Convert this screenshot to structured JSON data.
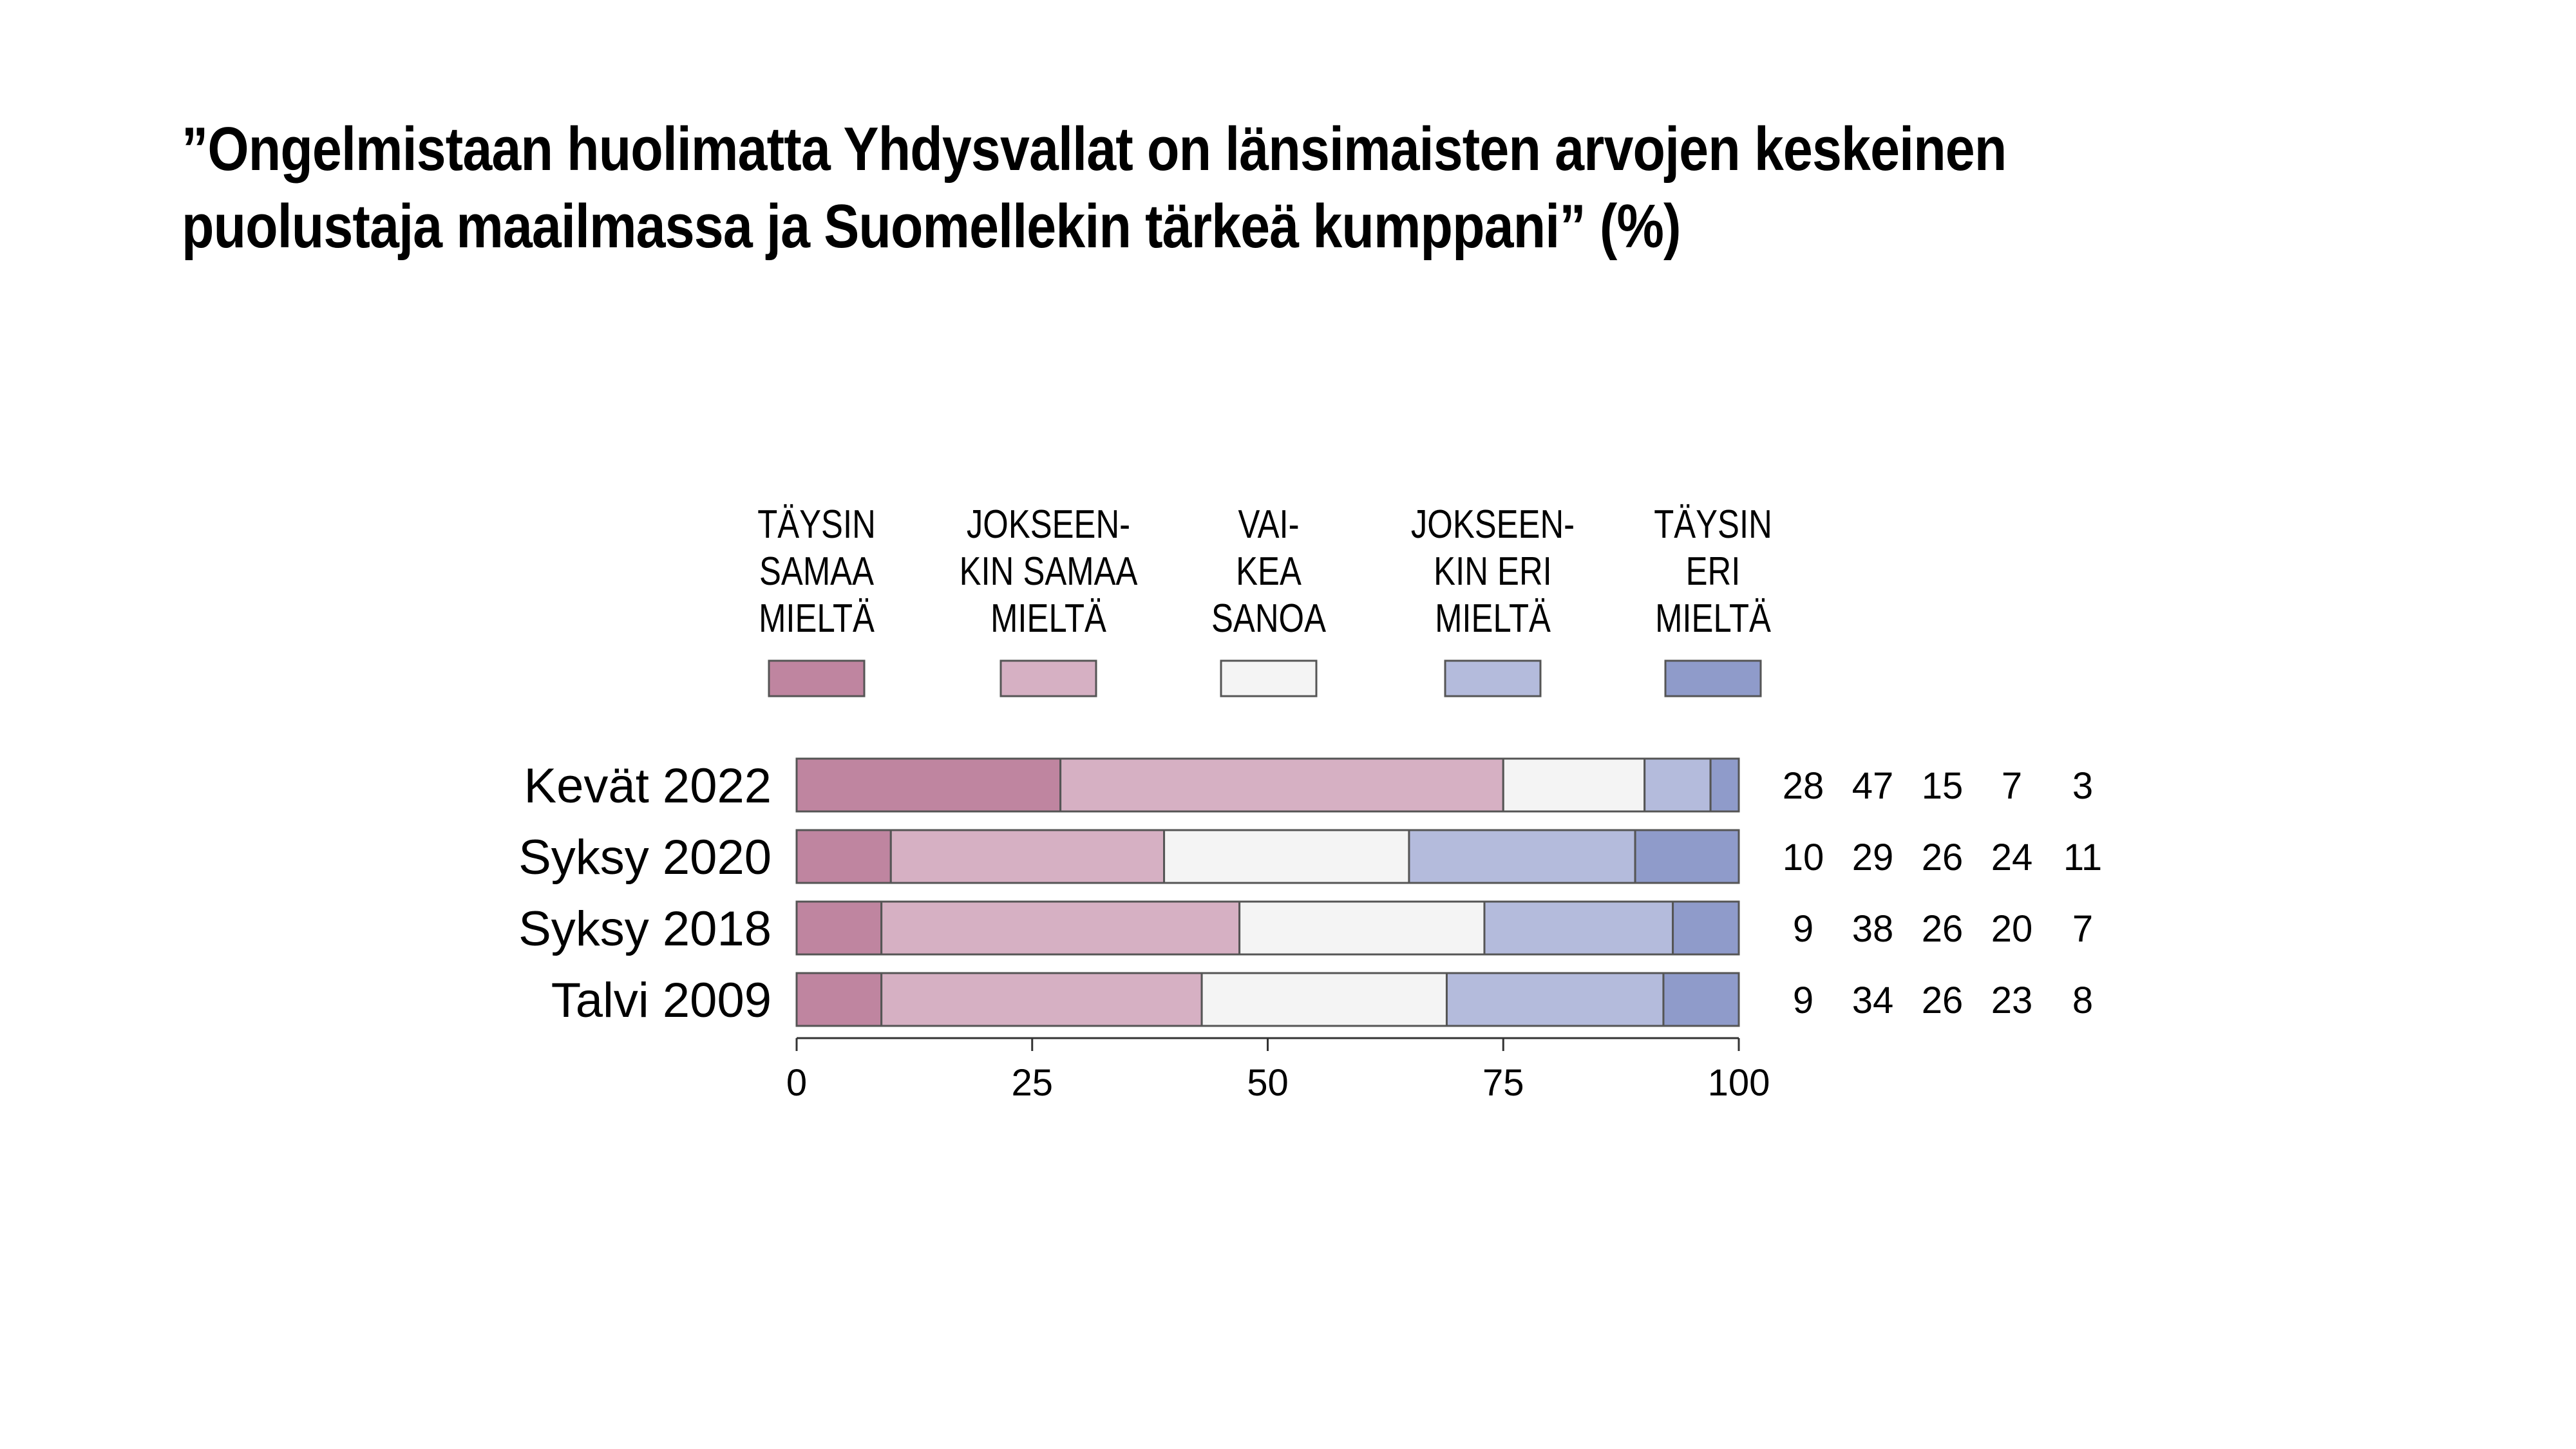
{
  "title": {
    "line1": "”Ongelmistaan huolimatta Yhdysvallat on länsimaisten arvojen keskeinen",
    "line2": "puolustaja maailmassa ja Suomellekin tärkeä kumppani” (%)"
  },
  "chart_data": {
    "type": "bar",
    "orientation": "horizontal",
    "stacked": true,
    "title": "”Ongelmistaan huolimatta Yhdysvallat on länsimaisten arvojen keskeinen puolustaja maailmassa ja Suomellekin tärkeä kumppani” (%)",
    "categories": [
      "Kevät 2022",
      "Syksy 2020",
      "Syksy 2018",
      "Talvi 2009"
    ],
    "series": [
      {
        "name": "TÄYSIN SAMAA MIELTÄ",
        "legend_lines": [
          "TÄYSIN",
          "SAMAA",
          "MIELTÄ"
        ],
        "color": "#bf85a0",
        "values": [
          28,
          10,
          9,
          9
        ]
      },
      {
        "name": "JOKSEEN-KIN SAMAA MIELTÄ",
        "legend_lines": [
          "JOKSEEN-",
          "KIN SAMAA",
          "MIELTÄ"
        ],
        "color": "#d6b0c3",
        "values": [
          47,
          29,
          38,
          34
        ]
      },
      {
        "name": "VAI-KEA SANOA",
        "legend_lines": [
          "VAI-",
          "KEA",
          "SANOA"
        ],
        "color": "#f4f4f4",
        "values": [
          15,
          26,
          26,
          26
        ]
      },
      {
        "name": "JOKSEEN-KIN ERI MIELTÄ",
        "legend_lines": [
          "JOKSEEN-",
          "KIN ERI",
          "MIELTÄ"
        ],
        "color": "#b4bbdc",
        "values": [
          7,
          24,
          20,
          23
        ]
      },
      {
        "name": "TÄYSIN ERI MIELTÄ",
        "legend_lines": [
          "TÄYSIN",
          "ERI",
          "MIELTÄ"
        ],
        "color": "#8f9bca",
        "values": [
          3,
          11,
          7,
          8
        ]
      }
    ],
    "xlim": [
      0,
      100
    ],
    "xticks": [
      0,
      25,
      50,
      75,
      100
    ],
    "legend_position": "top",
    "grid": false,
    "value_labels": "right"
  }
}
